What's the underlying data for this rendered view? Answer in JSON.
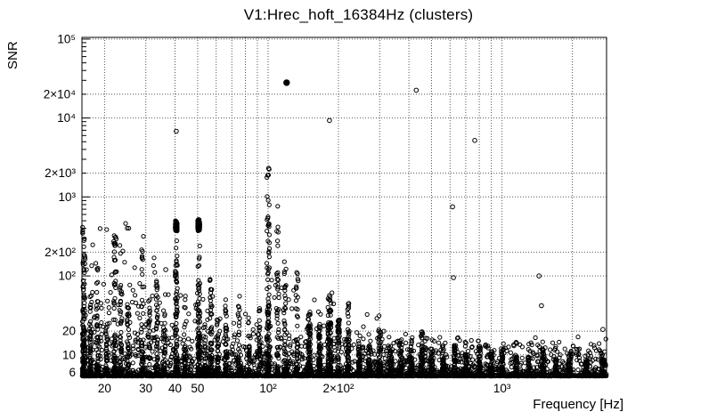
{
  "chart_data": {
    "type": "scatter",
    "title": "V1:Hrec_hoft_16384Hz (clusters)",
    "xlabel": "Frequency [Hz]",
    "ylabel": "SNR",
    "xscale": "log",
    "yscale": "log",
    "xlim": [
      16,
      2800
    ],
    "ylim": [
      5.2,
      105000
    ],
    "grid": "dotted",
    "legend": "none",
    "seed": 7,
    "colors": {
      "background": "#ffffff",
      "points": "#000000",
      "grid_dots": "#555555",
      "frame": "#000000"
    },
    "marker": {
      "shape": "open-circle",
      "radius": 2.1,
      "stroke_width": 1
    },
    "x_ticks": [
      {
        "v": 20,
        "label": "20"
      },
      {
        "v": 30,
        "label": "30"
      },
      {
        "v": 40,
        "label": "40"
      },
      {
        "v": 50,
        "label": "50"
      },
      {
        "v": 100,
        "label": "10²"
      },
      {
        "v": 200,
        "label": "2×10²"
      },
      {
        "v": 1000,
        "label": "10³"
      }
    ],
    "y_ticks": [
      {
        "v": 6,
        "label": "6"
      },
      {
        "v": 10,
        "label": "10"
      },
      {
        "v": 20,
        "label": "20"
      },
      {
        "v": 100,
        "label": "10²"
      },
      {
        "v": 200,
        "label": "2×10²"
      },
      {
        "v": 1000,
        "label": "10³"
      },
      {
        "v": 2000,
        "label": "2×10³"
      },
      {
        "v": 10000,
        "label": "10⁴"
      },
      {
        "v": 20000,
        "label": "2×10⁴"
      },
      {
        "v": 100000,
        "label": "10⁵"
      }
    ],
    "x_gridlines": [
      20,
      30,
      40,
      50,
      60,
      70,
      80,
      90,
      100,
      200,
      300,
      400,
      500,
      600,
      700,
      800,
      900,
      1000,
      2000
    ],
    "y_gridlines": [
      10,
      20,
      100,
      200,
      1000,
      2000,
      10000,
      20000,
      100000
    ],
    "baseline": {
      "n": 2600,
      "s_min": 5.4,
      "exp_max": 0.5,
      "pow": 5
    },
    "regions": [
      {
        "f_min": 16,
        "f_max": 34,
        "s_min": 9,
        "s_max": 480,
        "n": 95
      },
      {
        "f_min": 34,
        "f_max": 60,
        "s_min": 9,
        "s_max": 60,
        "n": 40
      },
      {
        "f_min": 60,
        "f_max": 95,
        "s_min": 9,
        "s_max": 40,
        "n": 25
      },
      {
        "f_min": 95,
        "f_max": 200,
        "s_min": 9,
        "s_max": 90,
        "n": 45
      },
      {
        "f_min": 200,
        "f_max": 420,
        "s_min": 8,
        "s_max": 35,
        "n": 30
      },
      {
        "f_min": 420,
        "f_max": 2800,
        "s_min": 7,
        "s_max": 12,
        "n": 35
      }
    ],
    "clusters": [
      {
        "f": 16.3,
        "df": 0.012,
        "n": 130,
        "s_max": 430,
        "pow": 2.6
      },
      {
        "f": 17.4,
        "df": 0.008,
        "n": 55,
        "s_max": 60,
        "pow": 2
      },
      {
        "f": 18.6,
        "df": 0.008,
        "n": 50,
        "s_max": 140,
        "pow": 2.2
      },
      {
        "f": 20.4,
        "df": 0.008,
        "n": 40,
        "s_max": 25,
        "pow": 2
      },
      {
        "f": 22.1,
        "df": 0.01,
        "n": 70,
        "s_max": 470,
        "pow": 2.8
      },
      {
        "f": 23.5,
        "df": 0.008,
        "n": 40,
        "s_max": 90,
        "pow": 2.2
      },
      {
        "f": 25.2,
        "df": 0.008,
        "n": 30,
        "s_max": 40,
        "pow": 2
      },
      {
        "f": 29.0,
        "df": 0.01,
        "n": 50,
        "s_max": 470,
        "pow": 3
      },
      {
        "f": 31.0,
        "df": 0.008,
        "n": 35,
        "s_max": 60,
        "pow": 2
      },
      {
        "f": 33.5,
        "df": 0.008,
        "n": 45,
        "s_max": 90,
        "pow": 2.2
      },
      {
        "f": 36.0,
        "df": 0.008,
        "n": 30,
        "s_max": 45,
        "pow": 2
      },
      {
        "f": 40.5,
        "df": 0.01,
        "n": 90,
        "s_max": 280,
        "pow": 2.2
      },
      {
        "f": 44.0,
        "df": 0.008,
        "n": 30,
        "s_max": 60,
        "pow": 2
      },
      {
        "f": 50.5,
        "df": 0.012,
        "n": 100,
        "s_max": 330,
        "pow": 2.2
      },
      {
        "f": 54.0,
        "df": 0.008,
        "n": 30,
        "s_max": 25,
        "pow": 2
      },
      {
        "f": 57.0,
        "df": 0.01,
        "n": 60,
        "s_max": 110,
        "pow": 2.2
      },
      {
        "f": 61.0,
        "df": 0.008,
        "n": 30,
        "s_max": 28,
        "pow": 2
      },
      {
        "f": 66.0,
        "df": 0.008,
        "n": 40,
        "s_max": 60,
        "pow": 2
      },
      {
        "f": 75.0,
        "df": 0.008,
        "n": 35,
        "s_max": 65,
        "pow": 2
      },
      {
        "f": 83.0,
        "df": 0.008,
        "n": 28,
        "s_max": 30,
        "pow": 2
      },
      {
        "f": 92.0,
        "df": 0.008,
        "n": 30,
        "s_max": 40,
        "pow": 2
      },
      {
        "f": 100.0,
        "df": 0.012,
        "n": 120,
        "s_max": 2300,
        "pow": 2.6
      },
      {
        "f": 110.0,
        "df": 0.01,
        "n": 60,
        "s_max": 800,
        "pow": 2.8
      },
      {
        "f": 118.0,
        "df": 0.01,
        "n": 50,
        "s_max": 300,
        "pow": 2.5
      },
      {
        "f": 133.0,
        "df": 0.01,
        "n": 40,
        "s_max": 130,
        "pow": 2.3
      },
      {
        "f": 150.0,
        "df": 0.012,
        "n": 90,
        "s_max": 35,
        "pow": 1.8
      },
      {
        "f": 166.0,
        "df": 0.01,
        "n": 60,
        "s_max": 28,
        "pow": 1.8
      },
      {
        "f": 183.0,
        "df": 0.014,
        "n": 110,
        "s_max": 60,
        "pow": 2
      },
      {
        "f": 200.0,
        "df": 0.01,
        "n": 50,
        "s_max": 28,
        "pow": 1.8
      },
      {
        "f": 220.0,
        "df": 0.01,
        "n": 55,
        "s_max": 45,
        "pow": 2
      },
      {
        "f": 245.0,
        "df": 0.01,
        "n": 40,
        "s_max": 18,
        "pow": 1.8
      },
      {
        "f": 270.0,
        "df": 0.01,
        "n": 35,
        "s_max": 14,
        "pow": 1.8
      },
      {
        "f": 300.0,
        "df": 0.012,
        "n": 55,
        "s_max": 22,
        "pow": 1.8
      },
      {
        "f": 335.0,
        "df": 0.01,
        "n": 35,
        "s_max": 12,
        "pow": 1.8
      },
      {
        "f": 370.0,
        "df": 0.01,
        "n": 45,
        "s_max": 16,
        "pow": 1.8
      },
      {
        "f": 410.0,
        "df": 0.01,
        "n": 45,
        "s_max": 18,
        "pow": 1.8
      },
      {
        "f": 455.0,
        "df": 0.012,
        "n": 55,
        "s_max": 20,
        "pow": 1.8
      },
      {
        "f": 500.0,
        "df": 0.01,
        "n": 35,
        "s_max": 12,
        "pow": 1.8
      },
      {
        "f": 560.0,
        "df": 0.01,
        "n": 40,
        "s_max": 13,
        "pow": 1.8
      },
      {
        "f": 630.0,
        "df": 0.01,
        "n": 40,
        "s_max": 14,
        "pow": 1.8
      },
      {
        "f": 700.0,
        "df": 0.01,
        "n": 35,
        "s_max": 11,
        "pow": 1.8
      },
      {
        "f": 800.0,
        "df": 0.012,
        "n": 45,
        "s_max": 13,
        "pow": 1.8
      },
      {
        "f": 900.0,
        "df": 0.01,
        "n": 40,
        "s_max": 12,
        "pow": 1.8
      },
      {
        "f": 1000.0,
        "df": 0.012,
        "n": 45,
        "s_max": 12,
        "pow": 1.8
      },
      {
        "f": 1150.0,
        "df": 0.01,
        "n": 35,
        "s_max": 10,
        "pow": 1.8
      },
      {
        "f": 1300.0,
        "df": 0.01,
        "n": 35,
        "s_max": 10,
        "pow": 1.8
      },
      {
        "f": 1500.0,
        "df": 0.012,
        "n": 45,
        "s_max": 12,
        "pow": 1.8
      },
      {
        "f": 1700.0,
        "df": 0.01,
        "n": 35,
        "s_max": 9,
        "pow": 1.8
      },
      {
        "f": 1950.0,
        "df": 0.012,
        "n": 45,
        "s_max": 11,
        "pow": 1.8
      },
      {
        "f": 2300.0,
        "df": 0.01,
        "n": 35,
        "s_max": 9,
        "pow": 1.8
      },
      {
        "f": 2700.0,
        "df": 0.012,
        "n": 40,
        "s_max": 10,
        "pow": 1.8
      }
    ],
    "blobs": [
      {
        "f": 40.5,
        "df": 0.008,
        "s_center": 430,
        "s_sigma": 0.065,
        "n": 150
      },
      {
        "f": 50.5,
        "df": 0.009,
        "s_center": 440,
        "s_sigma": 0.07,
        "n": 160
      }
    ],
    "singles": [
      {
        "f": 120,
        "s": 28000,
        "filled": true
      },
      {
        "f": 430,
        "s": 22500
      },
      {
        "f": 183,
        "s": 9300
      },
      {
        "f": 40.5,
        "s": 6800
      },
      {
        "f": 765,
        "s": 5200
      },
      {
        "f": 100.5,
        "s": 2300
      },
      {
        "f": 615,
        "s": 750
      },
      {
        "f": 620,
        "s": 95
      },
      {
        "f": 1440,
        "s": 100
      },
      {
        "f": 1475,
        "s": 42
      },
      {
        "f": 2700,
        "s": 21
      },
      {
        "f": 36.5,
        "s": 120
      }
    ]
  }
}
